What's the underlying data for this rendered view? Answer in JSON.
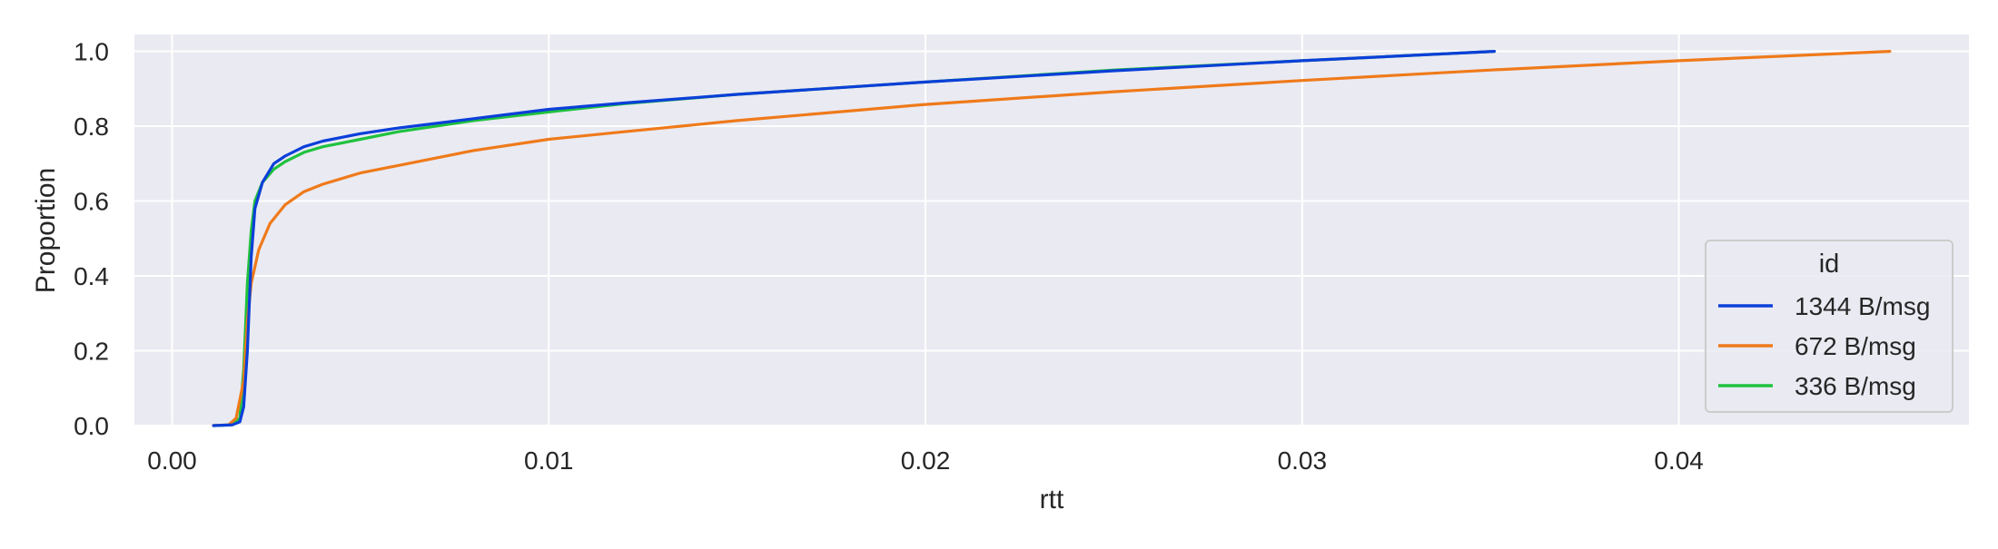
{
  "chart_data": {
    "type": "line",
    "title": "",
    "xlabel": "rtt",
    "ylabel": "Proportion",
    "xlim": [
      -0.001,
      0.0477
    ],
    "ylim": [
      0.0,
      1.045
    ],
    "x_ticks": [
      0.0,
      0.01,
      0.02,
      0.03,
      0.04
    ],
    "x_tick_labels": [
      "0.00",
      "0.01",
      "0.02",
      "0.03",
      "0.04"
    ],
    "y_ticks": [
      0.0,
      0.2,
      0.4,
      0.6,
      0.8,
      1.0
    ],
    "y_tick_labels": [
      "0.0",
      "0.2",
      "0.4",
      "0.6",
      "0.8",
      "1.0"
    ],
    "grid": true,
    "background": "#eaeaf2",
    "legend": {
      "title": "id",
      "placement": "lower-right"
    },
    "series": [
      {
        "name": "1344 B/msg",
        "color": "#0b3fd9",
        "points": [
          [
            0.0011,
            0.0
          ],
          [
            0.0016,
            0.002
          ],
          [
            0.0018,
            0.01
          ],
          [
            0.0019,
            0.05
          ],
          [
            0.002,
            0.2
          ],
          [
            0.0021,
            0.45
          ],
          [
            0.0022,
            0.58
          ],
          [
            0.0024,
            0.65
          ],
          [
            0.0027,
            0.7
          ],
          [
            0.003,
            0.72
          ],
          [
            0.0035,
            0.745
          ],
          [
            0.004,
            0.76
          ],
          [
            0.005,
            0.78
          ],
          [
            0.006,
            0.795
          ],
          [
            0.008,
            0.82
          ],
          [
            0.01,
            0.845
          ],
          [
            0.012,
            0.862
          ],
          [
            0.015,
            0.885
          ],
          [
            0.02,
            0.918
          ],
          [
            0.025,
            0.948
          ],
          [
            0.03,
            0.975
          ],
          [
            0.0351,
            1.0
          ]
        ]
      },
      {
        "name": "672 B/msg",
        "color": "#ef7a1a",
        "points": [
          [
            0.0011,
            0.0
          ],
          [
            0.0015,
            0.002
          ],
          [
            0.0017,
            0.02
          ],
          [
            0.0019,
            0.12
          ],
          [
            0.002,
            0.28
          ],
          [
            0.0021,
            0.38
          ],
          [
            0.0023,
            0.47
          ],
          [
            0.0026,
            0.54
          ],
          [
            0.003,
            0.59
          ],
          [
            0.0035,
            0.625
          ],
          [
            0.004,
            0.645
          ],
          [
            0.005,
            0.675
          ],
          [
            0.006,
            0.695
          ],
          [
            0.008,
            0.735
          ],
          [
            0.01,
            0.765
          ],
          [
            0.012,
            0.785
          ],
          [
            0.015,
            0.815
          ],
          [
            0.02,
            0.858
          ],
          [
            0.025,
            0.892
          ],
          [
            0.03,
            0.922
          ],
          [
            0.035,
            0.95
          ],
          [
            0.04,
            0.975
          ],
          [
            0.0456,
            1.0
          ]
        ]
      },
      {
        "name": "336 B/msg",
        "color": "#1fc23e",
        "points": [
          [
            0.0011,
            0.0
          ],
          [
            0.0016,
            0.002
          ],
          [
            0.0018,
            0.02
          ],
          [
            0.0019,
            0.15
          ],
          [
            0.002,
            0.38
          ],
          [
            0.0021,
            0.52
          ],
          [
            0.0022,
            0.6
          ],
          [
            0.0024,
            0.65
          ],
          [
            0.0027,
            0.685
          ],
          [
            0.003,
            0.705
          ],
          [
            0.0035,
            0.73
          ],
          [
            0.004,
            0.745
          ],
          [
            0.005,
            0.765
          ],
          [
            0.006,
            0.785
          ],
          [
            0.008,
            0.815
          ],
          [
            0.01,
            0.838
          ],
          [
            0.012,
            0.86
          ],
          [
            0.015,
            0.885
          ],
          [
            0.02,
            0.918
          ],
          [
            0.025,
            0.95
          ],
          [
            0.03,
            0.975
          ],
          [
            0.0351,
            1.0
          ]
        ]
      }
    ]
  }
}
